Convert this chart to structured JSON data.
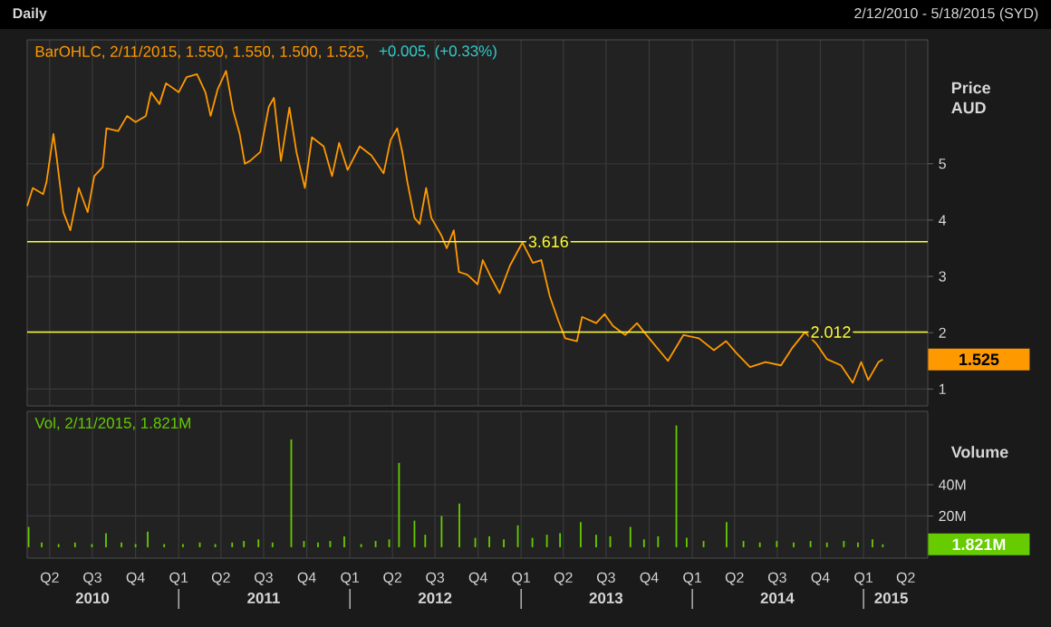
{
  "chart_data": [
    {
      "type": "line",
      "title": "Daily",
      "subtitle": "2/12/2010 - 5/18/2015 (SYD)",
      "ylabel": "Price AUD",
      "color": "#ff9900",
      "x": [
        "2010-02-12",
        "2010-02-24",
        "2010-03-18",
        "2010-03-25",
        "2010-04-09",
        "2010-04-16",
        "2010-04-30",
        "2010-05-15",
        "2010-06-02",
        "2010-06-21",
        "2010-07-05",
        "2010-07-23",
        "2010-07-31",
        "2010-08-25",
        "2010-09-13",
        "2010-10-01",
        "2010-10-23",
        "2010-11-03",
        "2010-11-21",
        "2010-12-05",
        "2011-01-01",
        "2011-01-18",
        "2011-02-09",
        "2011-02-27",
        "2011-03-10",
        "2011-03-25",
        "2011-04-12",
        "2011-04-27",
        "2011-05-11",
        "2011-05-22",
        "2011-06-02",
        "2011-06-24",
        "2011-07-12",
        "2011-07-23",
        "2011-08-07",
        "2011-08-25",
        "2011-09-09",
        "2011-09-27",
        "2011-10-12",
        "2011-11-06",
        "2011-11-24",
        "2011-12-09",
        "2011-12-27",
        "2012-01-22",
        "2012-02-16",
        "2012-03-13",
        "2012-03-28",
        "2012-04-11",
        "2012-04-22",
        "2012-05-03",
        "2012-05-18",
        "2012-05-29",
        "2012-06-12",
        "2012-06-23",
        "2012-07-15",
        "2012-07-26",
        "2012-08-10",
        "2012-08-21",
        "2012-09-08",
        "2012-09-30",
        "2012-10-11",
        "2012-10-29",
        "2012-11-16",
        "2012-12-08",
        "2013-01-01",
        "2013-01-04",
        "2013-01-26",
        "2013-02-13",
        "2013-03-03",
        "2013-03-21",
        "2013-04-05",
        "2013-04-30",
        "2013-05-11",
        "2013-06-10",
        "2013-06-28",
        "2013-07-16",
        "2013-08-11",
        "2013-09-05",
        "2013-10-01",
        "2013-11-10",
        "2013-12-13",
        "2014-01-15",
        "2014-02-16",
        "2014-03-14",
        "2014-04-05",
        "2014-05-04",
        "2014-06-06",
        "2014-07-09",
        "2014-08-03",
        "2014-08-29",
        "2014-09-23",
        "2014-10-15",
        "2014-11-14",
        "2014-12-09",
        "2014-12-27",
        "2015-01-11",
        "2015-02-02",
        "2015-02-11"
      ],
      "values": [
        4.25,
        4.57,
        4.46,
        4.67,
        5.53,
        5.1,
        4.14,
        3.82,
        4.57,
        4.14,
        4.78,
        4.94,
        5.63,
        5.58,
        5.85,
        5.74,
        5.85,
        6.27,
        6.06,
        6.43,
        6.27,
        6.54,
        6.59,
        6.27,
        5.85,
        6.32,
        6.65,
        5.95,
        5.53,
        5.0,
        5.05,
        5.21,
        6.01,
        6.17,
        5.05,
        6.0,
        5.21,
        4.57,
        5.47,
        5.31,
        4.78,
        5.37,
        4.89,
        5.31,
        5.15,
        4.83,
        5.42,
        5.63,
        5.21,
        4.67,
        4.04,
        3.93,
        4.57,
        4.04,
        3.72,
        3.5,
        3.82,
        3.08,
        3.03,
        2.86,
        3.29,
        2.98,
        2.7,
        3.19,
        3.56,
        3.6,
        3.24,
        3.29,
        2.65,
        2.22,
        1.9,
        1.85,
        2.28,
        2.17,
        2.33,
        2.12,
        1.96,
        2.17,
        1.9,
        1.5,
        1.96,
        1.9,
        1.69,
        1.85,
        1.64,
        1.39,
        1.48,
        1.42,
        1.74,
        2.01,
        1.8,
        1.53,
        1.42,
        1.11,
        1.48,
        1.16,
        1.48,
        1.525
      ],
      "xlim": [
        "2010-02-12",
        "2015-05-18"
      ],
      "ylim": [
        0.7,
        7.2
      ],
      "yticks": [
        1,
        2,
        3,
        4,
        5
      ],
      "xticks": [
        {
          "value": "2010-04-01",
          "label": null
        },
        {
          "value": "2010-07-01",
          "label": null
        },
        {
          "value": "2010-10-01",
          "label": null
        },
        {
          "value": "2011-01-01",
          "label": null
        },
        {
          "value": "2011-04-01",
          "label": null
        },
        {
          "value": "2011-07-01",
          "label": null
        },
        {
          "value": "2011-10-01",
          "label": null
        },
        {
          "value": "2012-01-01",
          "label": null
        },
        {
          "value": "2012-04-01",
          "label": null
        },
        {
          "value": "2012-07-01",
          "label": null
        },
        {
          "value": "2012-10-01",
          "label": null
        },
        {
          "value": "2013-01-01",
          "label": null
        },
        {
          "value": "2013-04-01",
          "label": null
        },
        {
          "value": "2013-07-01",
          "label": null
        },
        {
          "value": "2013-10-01",
          "label": null
        },
        {
          "value": "2014-01-01",
          "label": null
        },
        {
          "value": "2014-04-01",
          "label": null
        },
        {
          "value": "2014-07-01",
          "label": null
        },
        {
          "value": "2014-10-01",
          "label": null
        },
        {
          "value": "2015-01-01",
          "label": null
        },
        {
          "value": "2015-04-01",
          "label": null
        }
      ],
      "tick_labels": "y",
      "grid": true,
      "ref_lines": [
        {
          "axis": "y",
          "value": 3.616,
          "label": "3.616",
          "color": "#ffff33"
        },
        {
          "axis": "y",
          "value": 2.012,
          "label": "2.012",
          "color": "#ffff33"
        }
      ],
      "annotations": [
        "BarOHLC, 2/11/2015, 1.550, 1.550, 1.500, 1.525,",
        "+0.005, (+0.33%)",
        "1.525"
      ]
    },
    {
      "type": "bar",
      "ylabel": "Volume",
      "color": "#66cc00",
      "x": [
        "2010-02-15",
        "2010-03-15",
        "2010-04-20",
        "2010-05-25",
        "2010-06-30",
        "2010-07-30",
        "2010-09-01",
        "2010-10-01",
        "2010-10-27",
        "2010-12-01",
        "2011-01-10",
        "2011-02-15",
        "2011-03-20",
        "2011-04-25",
        "2011-05-20",
        "2011-06-20",
        "2011-07-20",
        "2011-08-29",
        "2011-09-25",
        "2011-10-25",
        "2011-11-20",
        "2011-12-20",
        "2012-01-25",
        "2012-02-25",
        "2012-03-25",
        "2012-04-15",
        "2012-05-18",
        "2012-06-10",
        "2012-07-15",
        "2012-08-22",
        "2012-09-25",
        "2012-10-25",
        "2012-11-25",
        "2012-12-25",
        "2013-01-25",
        "2013-02-25",
        "2013-03-25",
        "2013-05-08",
        "2013-06-10",
        "2013-07-10",
        "2013-08-22",
        "2013-09-20",
        "2013-10-20",
        "2013-11-28",
        "2013-12-20",
        "2014-01-25",
        "2014-03-15",
        "2014-04-20",
        "2014-05-25",
        "2014-06-30",
        "2014-08-05",
        "2014-09-10",
        "2014-10-15",
        "2014-11-20",
        "2014-12-20",
        "2015-01-20",
        "2015-02-11"
      ],
      "values": [
        13,
        3,
        2,
        3,
        2,
        9,
        3,
        2,
        10,
        2,
        2,
        3,
        2,
        3,
        4,
        5,
        3,
        69,
        4,
        3,
        4,
        7,
        2,
        4,
        5,
        54,
        17,
        8,
        20,
        28,
        6,
        7,
        5,
        14,
        6,
        8,
        9,
        16,
        8,
        7,
        13,
        5,
        7,
        78,
        6,
        4,
        16,
        4,
        3,
        4,
        3,
        4,
        3,
        4,
        3,
        5,
        1.821
      ],
      "xlim": [
        "2010-02-12",
        "2015-05-18"
      ],
      "ylim": [
        -7,
        87
      ],
      "yticks": [
        {
          "value": 20,
          "label": "20M"
        },
        {
          "value": 40,
          "label": "40M"
        }
      ],
      "xticks": [
        {
          "value": "2010-04-01",
          "label": "Q2"
        },
        {
          "value": "2010-07-01",
          "label": "Q3"
        },
        {
          "value": "2010-10-01",
          "label": "Q4"
        },
        {
          "value": "2011-01-01",
          "label": "Q1"
        },
        {
          "value": "2011-04-01",
          "label": "Q2"
        },
        {
          "value": "2011-07-01",
          "label": "Q3"
        },
        {
          "value": "2011-10-01",
          "label": "Q4"
        },
        {
          "value": "2012-01-01",
          "label": "Q1"
        },
        {
          "value": "2012-04-01",
          "label": "Q2"
        },
        {
          "value": "2012-07-01",
          "label": "Q3"
        },
        {
          "value": "2012-10-01",
          "label": "Q4"
        },
        {
          "value": "2013-01-01",
          "label": "Q1"
        },
        {
          "value": "2013-04-01",
          "label": "Q2"
        },
        {
          "value": "2013-07-01",
          "label": "Q3"
        },
        {
          "value": "2013-10-01",
          "label": "Q4"
        },
        {
          "value": "2014-01-01",
          "label": "Q1"
        },
        {
          "value": "2014-04-01",
          "label": "Q2"
        },
        {
          "value": "2014-07-01",
          "label": "Q3"
        },
        {
          "value": "2014-10-01",
          "label": "Q4"
        },
        {
          "value": "2015-01-01",
          "label": "Q1"
        },
        {
          "value": "2015-04-01",
          "label": "Q2"
        }
      ],
      "x2lim": [
        "2010-02-12",
        "2015-05-18"
      ],
      "x2ticks": [
        {
          "value": "2010-07-01",
          "label": "2010"
        },
        {
          "value": "2011-01-01",
          "label": null
        },
        {
          "value": "2011-07-01",
          "label": "2011"
        },
        {
          "value": "2012-01-01",
          "label": null
        },
        {
          "value": "2012-07-01",
          "label": "2012"
        },
        {
          "value": "2013-01-01",
          "label": null
        },
        {
          "value": "2013-07-01",
          "label": "2013"
        },
        {
          "value": "2014-01-01",
          "label": null
        },
        {
          "value": "2014-07-01",
          "label": "2014"
        },
        {
          "value": "2015-01-01",
          "label": null
        },
        {
          "value": "2015-03-01",
          "label": "2015"
        }
      ],
      "grid": true,
      "annotations": [
        "Vol, 2/11/2015, 1.821M",
        "1.821M"
      ]
    }
  ]
}
